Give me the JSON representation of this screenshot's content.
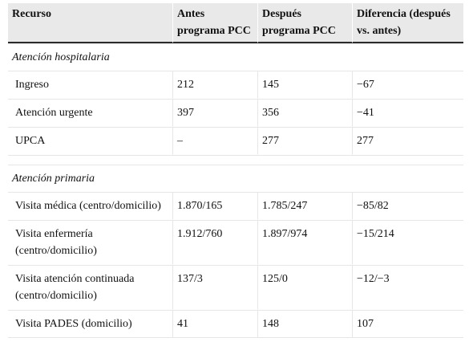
{
  "headers": [
    "Recurso",
    "Antes programa PCC",
    "Después programa PCC",
    "Diferencia (después vs. antes)"
  ],
  "sections": [
    {
      "title": "Atención hospitalaria",
      "rows": [
        [
          "Ingreso",
          "212",
          "145",
          "−67"
        ],
        [
          "Atención urgente",
          "397",
          "356",
          "−41"
        ],
        [
          "UPCA",
          "–",
          "277",
          "277"
        ]
      ]
    },
    {
      "title": "Atención primaria",
      "rows": [
        [
          "Visita médica (centro/domicilio)",
          "1.870/165",
          "1.785/247",
          "−85/82"
        ],
        [
          "Visita enfermería (centro/domicilio)",
          "1.912/760",
          "1.897/974",
          "−15/214"
        ],
        [
          "Visita atención continuada (centro/domicilio)",
          "137/3",
          "125/0",
          "−12/−3"
        ],
        [
          "Visita PADES (domicilio)",
          "41",
          "148",
          "107"
        ]
      ]
    }
  ]
}
